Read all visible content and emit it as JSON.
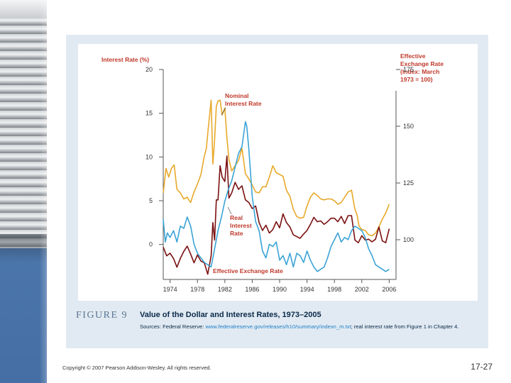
{
  "figure": {
    "label": "FIGURE 9",
    "title": "Value of the Dollar and Interest Rates, 1973–2005",
    "sources_prefix": "Sources: Federal Reserve: ",
    "sources_link": "www.federalreserve.gov/releases/h10/summary/indexn_m.txt",
    "sources_suffix": "; real interest rate from Figure 1 in Chapter 4."
  },
  "footer": {
    "copyright": "Copyright © 2007 Pearson Addison-Wesley. All rights reserved.",
    "page_number": "17-27"
  },
  "colors": {
    "nominal": "#e8a92a",
    "real": "#7a1010",
    "exchange": "#3aa3d6",
    "axis": "#555555",
    "label": "#c0392b",
    "panel": "#e1eaf2",
    "strip": "#4d78ad"
  },
  "chart_data": {
    "type": "line",
    "left_axis": {
      "title": "Interest Rate (%)",
      "range": [
        -4,
        20
      ],
      "ticks": [
        20,
        15,
        10,
        5,
        0
      ],
      "tick_labels": [
        "20",
        "15",
        "10",
        "5",
        "0"
      ]
    },
    "right_axis": {
      "title_lines": [
        "Effective",
        "Exchange Rate",
        "(Index: March",
        "1973 = 100)"
      ],
      "range": [
        82.5,
        175
      ],
      "ticks": [
        175,
        150,
        125,
        100
      ],
      "tick_labels": [
        "175",
        "150",
        "125",
        "100"
      ]
    },
    "x_axis": {
      "range": [
        1973,
        2007
      ],
      "ticks": [
        1974,
        1978,
        1982,
        1986,
        1990,
        1994,
        1998,
        2002,
        2006
      ],
      "tick_labels": [
        "1974",
        "1978",
        "1982",
        "1986",
        "1990",
        "1994",
        "1998",
        "2002",
        "2006"
      ]
    },
    "annotations": [
      {
        "text_lines": [
          "Nominal",
          "Interest Rate"
        ],
        "series": "nominal"
      },
      {
        "text_lines": [
          "Real",
          "Interest",
          "Rate"
        ],
        "series": "real"
      },
      {
        "text_lines": [
          "Effective Exchange Rate"
        ],
        "series": "exchange"
      }
    ],
    "series": [
      {
        "name": "Nominal Interest Rate",
        "key": "nominal",
        "axis": "left",
        "x": [
          1973,
          1973.4,
          1973.8,
          1974.2,
          1974.6,
          1975,
          1975.5,
          1976,
          1976.5,
          1977,
          1977.5,
          1978,
          1978.5,
          1979,
          1979.3,
          1979.6,
          1980,
          1980.25,
          1980.5,
          1980.75,
          1981,
          1981.3,
          1981.6,
          1982,
          1982.3,
          1982.6,
          1983,
          1983.5,
          1984,
          1984.5,
          1985,
          1985.5,
          1986,
          1986.5,
          1987,
          1987.5,
          1988,
          1988.5,
          1989,
          1989.5,
          1990,
          1990.5,
          1991,
          1991.5,
          1992,
          1992.5,
          1993,
          1993.5,
          1994,
          1994.5,
          1995,
          1995.5,
          1996,
          1996.5,
          1997,
          1997.5,
          1998,
          1998.5,
          1999,
          1999.5,
          2000,
          2000.5,
          2001,
          2001.3,
          2001.6,
          2002,
          2002.5,
          2003,
          2003.5,
          2004,
          2004.5,
          2005,
          2005.5,
          2006
        ],
        "values": [
          5.9,
          8.7,
          7.7,
          8.7,
          9.1,
          6.3,
          5.9,
          5.2,
          5.4,
          4.8,
          6.0,
          6.9,
          8.0,
          10.1,
          11.0,
          13.5,
          16.5,
          9.2,
          12.0,
          15.8,
          16.4,
          16.5,
          14.8,
          15.6,
          12.2,
          9.7,
          8.4,
          9.0,
          9.6,
          11.0,
          8.1,
          7.5,
          6.8,
          6.0,
          5.9,
          6.6,
          6.6,
          7.7,
          9.0,
          8.2,
          8.0,
          7.8,
          6.2,
          5.5,
          4.0,
          3.2,
          3.0,
          3.1,
          4.4,
          5.4,
          5.9,
          5.6,
          5.2,
          5.1,
          5.2,
          5.2,
          5.0,
          4.6,
          4.8,
          5.4,
          6.0,
          6.2,
          4.0,
          3.4,
          2.1,
          1.7,
          1.6,
          1.1,
          1.0,
          1.3,
          2.0,
          2.9,
          3.6,
          4.6
        ]
      },
      {
        "name": "Real Interest Rate",
        "key": "real",
        "axis": "left",
        "x": [
          1973,
          1973.5,
          1974,
          1974.5,
          1975,
          1975.5,
          1976,
          1976.5,
          1977,
          1977.5,
          1978,
          1978.5,
          1979,
          1979.5,
          1980,
          1980.25,
          1980.5,
          1980.75,
          1981,
          1981.3,
          1981.6,
          1982,
          1982.3,
          1982.6,
          1983,
          1983.5,
          1984,
          1984.5,
          1985,
          1985.5,
          1986,
          1986.5,
          1987,
          1987.5,
          1988,
          1988.5,
          1989,
          1989.5,
          1990,
          1990.5,
          1991,
          1991.5,
          1992,
          1992.5,
          1993,
          1993.5,
          1994,
          1994.5,
          1995,
          1995.5,
          1996,
          1996.5,
          1997,
          1997.5,
          1998,
          1998.5,
          1999,
          1999.5,
          2000,
          2000.5,
          2001,
          2001.5,
          2002,
          2002.5,
          2003,
          2003.5,
          2004,
          2004.5,
          2005,
          2005.5,
          2006
        ],
        "values": [
          -0.3,
          -1.3,
          -1.0,
          -1.6,
          -2.6,
          -1.6,
          -0.8,
          -0.2,
          -1.1,
          -2.1,
          -1.2,
          -1.9,
          -2.1,
          -3.4,
          -1.3,
          2.5,
          0.5,
          5.1,
          5.1,
          9.0,
          7.7,
          7.2,
          10.1,
          5.3,
          5.9,
          7.1,
          6.3,
          6.7,
          5.1,
          4.8,
          4.1,
          4.4,
          2.5,
          1.6,
          2.2,
          1.3,
          1.7,
          2.6,
          1.9,
          3.5,
          2.5,
          2.0,
          1.1,
          0.9,
          0.7,
          1.2,
          1.6,
          2.3,
          3.1,
          2.6,
          2.7,
          2.3,
          2.6,
          3.0,
          3.0,
          2.6,
          3.2,
          2.4,
          3.3,
          3.3,
          0.5,
          0.2,
          1.0,
          0.5,
          0.6,
          0.3,
          0.6,
          2.0,
          0.4,
          0.2,
          1.8
        ]
      },
      {
        "name": "Effective Exchange Rate",
        "key": "exchange",
        "axis": "right",
        "x": [
          1973,
          1973.3,
          1973.6,
          1974,
          1974.5,
          1975,
          1975.5,
          1976,
          1976.5,
          1977,
          1977.5,
          1978,
          1978.5,
          1979,
          1979.5,
          1980,
          1980.5,
          1981,
          1981.5,
          1982,
          1982.5,
          1983,
          1983.5,
          1984,
          1984.5,
          1985,
          1985.2,
          1985.5,
          1986,
          1986.5,
          1987,
          1987.5,
          1988,
          1988.5,
          1989,
          1989.5,
          1990,
          1990.5,
          1991,
          1991.5,
          1992,
          1992.5,
          1993,
          1993.5,
          1994,
          1994.5,
          1995,
          1995.5,
          1996,
          1996.5,
          1997,
          1997.5,
          1998,
          1998.5,
          1999,
          1999.5,
          2000,
          2000.5,
          2001,
          2001.5,
          2002,
          2002.5,
          2003,
          2003.5,
          2004,
          2004.5,
          2005,
          2005.5,
          2006
        ],
        "values": [
          109,
          99,
          103,
          101,
          104,
          99,
          106,
          105,
          110,
          106,
          98,
          94,
          92,
          90,
          89,
          88,
          96,
          104,
          110,
          117,
          122,
          126,
          132,
          138,
          141,
          152,
          150,
          140,
          119,
          108,
          104,
          95,
          92,
          98,
          97,
          99,
          91,
          93,
          89,
          94,
          88,
          94,
          93,
          90,
          95,
          91,
          88,
          86,
          87,
          88,
          92,
          97,
          100,
          103,
          99,
          101,
          100,
          104,
          106,
          105,
          104,
          101,
          96,
          93,
          89,
          88,
          87,
          86,
          87
        ]
      }
    ]
  }
}
